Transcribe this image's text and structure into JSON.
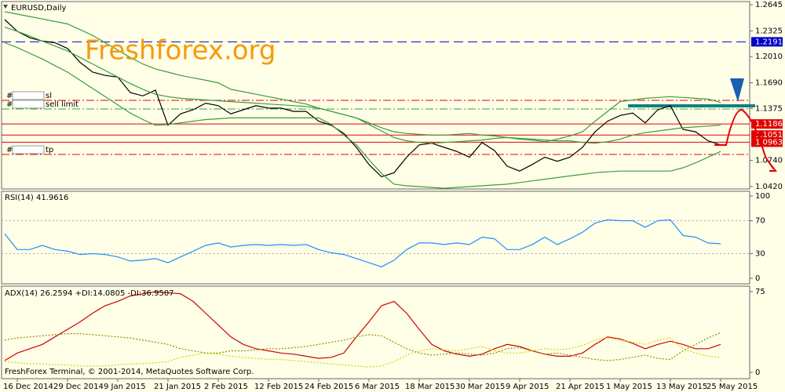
{
  "chart_data": [
    {
      "type": "line",
      "title": "EURUSD,Daily",
      "watermark": "Freshforex.org",
      "categories": [
        null,
        "16 Dec 2014",
        null,
        null,
        null,
        "29 Dec 2014",
        null,
        null,
        null,
        "9 Jan 2015",
        null,
        null,
        null,
        "21 Jan 2015",
        null,
        null,
        null,
        "2 Feb 2015",
        null,
        null,
        null,
        "12 Feb 2015",
        null,
        null,
        null,
        "24 Feb 2015",
        null,
        null,
        null,
        "6 Mar 2015",
        null,
        null,
        null,
        "18 Mar 2015",
        null,
        null,
        null,
        "30 Mar 2015",
        null,
        null,
        null,
        "9 Apr 2015",
        null,
        null,
        null,
        "21 Apr 2015",
        null,
        null,
        null,
        "1 May 2015",
        null,
        null,
        null,
        "13 May 2015",
        null,
        null,
        null,
        "25 May 2015"
      ],
      "ylim": [
        1.042,
        1.2645
      ],
      "yticks": [
        1.2645,
        1.2325,
        {
          "value": 1.201,
          "label": "1.2010"
        },
        {
          "value": 1.169,
          "label": "1.1690"
        },
        1.1375,
        {
          "value": 1.074,
          "label": "1.0740"
        },
        {
          "value": 1.042,
          "label": "1.0420"
        }
      ],
      "series": [
        {
          "color": "#000000",
          "values": [
            1.2463,
            1.232,
            1.224,
            1.22,
            1.218,
            1.211,
            1.194,
            1.182,
            1.178,
            1.176,
            1.157,
            1.153,
            1.16,
            1.117,
            1.131,
            1.136,
            1.144,
            1.141,
            1.131,
            1.136,
            1.141,
            1.138,
            1.138,
            1.134,
            1.134,
            1.122,
            1.117,
            1.107,
            1.09,
            1.069,
            1.054,
            1.059,
            1.078,
            1.093,
            1.095,
            1.09,
            1.085,
            1.078,
            1.096,
            1.086,
            1.067,
            1.061,
            1.069,
            1.078,
            1.073,
            1.078,
            1.09,
            1.109,
            1.122,
            1.129,
            1.132,
            1.12,
            1.136,
            1.141,
            1.112,
            1.109,
            1.098,
            1.093
          ]
        },
        {
          "color": "#3c9c3c",
          "values": [
            1.256,
            1.253,
            1.25,
            1.247,
            1.244,
            1.241,
            1.234,
            1.227,
            1.218,
            1.209,
            1.2,
            1.192,
            1.186,
            1.182,
            1.178,
            1.175,
            1.172,
            1.169,
            1.161,
            1.158,
            1.155,
            1.152,
            1.149,
            1.146,
            1.143,
            1.138,
            1.134,
            1.13,
            1.126,
            1.12,
            1.114,
            1.109,
            1.107,
            1.106,
            1.105,
            1.105,
            1.106,
            1.107,
            1.105,
            1.104,
            1.102,
            1.1,
            1.099,
            1.097,
            1.1,
            1.104,
            1.109,
            1.122,
            1.134,
            1.146,
            1.148,
            1.15,
            1.151,
            1.152,
            1.151,
            1.15,
            1.149,
            1.145
          ]
        },
        {
          "color": "#3c9c3c",
          "values": [
            1.237,
            1.232,
            1.226,
            1.22,
            1.214,
            1.208,
            1.2,
            1.192,
            1.184,
            1.176,
            1.168,
            1.161,
            1.155,
            1.152,
            1.15,
            1.149,
            1.148,
            1.147,
            1.146,
            1.145,
            1.144,
            1.143,
            1.142,
            1.141,
            1.14,
            1.138,
            1.134,
            1.13,
            1.126,
            1.118,
            1.11,
            1.102,
            1.098,
            1.096,
            1.095,
            1.096,
            1.097,
            1.098,
            1.099,
            1.101,
            1.102,
            1.101,
            1.1,
            1.099,
            1.098,
            1.098,
            1.096,
            1.095,
            1.097,
            1.1,
            1.105,
            1.108,
            1.11,
            1.112,
            1.114,
            1.115,
            1.116,
            1.117
          ]
        },
        {
          "color": "#3c9c3c",
          "values": [
            1.218,
            1.212,
            1.205,
            1.198,
            1.19,
            1.182,
            1.172,
            1.162,
            1.152,
            1.142,
            1.132,
            1.124,
            1.117,
            1.118,
            1.12,
            1.122,
            1.124,
            1.125,
            1.126,
            1.126,
            1.126,
            1.126,
            1.126,
            1.126,
            1.126,
            1.126,
            1.118,
            1.105,
            1.093,
            1.075,
            1.058,
            1.045,
            1.043,
            1.042,
            1.041,
            1.04,
            1.041,
            1.042,
            1.043,
            1.044,
            1.045,
            1.047,
            1.049,
            1.051,
            1.053,
            1.055,
            1.057,
            1.059,
            1.06,
            1.061,
            1.061,
            1.061,
            1.061,
            1.061,
            1.065,
            1.071,
            1.078,
            1.085
          ]
        }
      ],
      "levels": [
        {
          "value": 1.2191,
          "color": "#0000c8",
          "style": "dashed"
        },
        {
          "value": 1.1186,
          "color": "#e00000",
          "style": "solid"
        },
        {
          "value": 1.1051,
          "color": "#e00000",
          "style": "solid"
        },
        {
          "value": 1.0963,
          "color": "#e00000",
          "style": "solid"
        }
      ],
      "orders": [
        {
          "prefix": "#",
          "name": "sl",
          "value": 1.1475,
          "color": "#e00000"
        },
        {
          "prefix": "#",
          "name": "sell limit",
          "value": 1.137,
          "color": "#3c9c3c"
        },
        {
          "prefix": "#",
          "name": "tp",
          "value": 1.0813,
          "color": "#e00000"
        }
      ],
      "trendline": {
        "value": 1.1408,
        "color": "#0f7f85"
      }
    },
    {
      "type": "line",
      "title": "RSI(14) 41.9616",
      "ylim": [
        0,
        100
      ],
      "yticks": [
        100,
        70,
        30,
        0
      ],
      "levels": [
        70,
        30
      ],
      "series": [
        {
          "color": "#1e90ff",
          "values": [
            54,
            35,
            35,
            40,
            35,
            33,
            29,
            30,
            29,
            26,
            21,
            22,
            24,
            19,
            26,
            33,
            40,
            43,
            38,
            40,
            41,
            40,
            41,
            40,
            41,
            35,
            31,
            29,
            24,
            19,
            14,
            22,
            35,
            43,
            43,
            41,
            43,
            41,
            50,
            48,
            35,
            35,
            41,
            50,
            41,
            48,
            56,
            67,
            71,
            70,
            70,
            62,
            70,
            71,
            52,
            50,
            43,
            42
          ]
        }
      ]
    },
    {
      "type": "line",
      "title": "ADX(14) 26.2594 +DI:14.0805 -DI:36.9507",
      "footer": "FreshForex Terminal, © 2001-2014, MetaQuotes Software Corp.",
      "ylim": [
        0,
        75
      ],
      "yticks": [
        75,
        0
      ],
      "series": [
        {
          "color": "#d00000",
          "values": [
            11,
            18,
            22,
            26,
            33,
            40,
            47,
            55,
            62,
            66,
            71,
            73,
            75,
            74,
            73,
            66,
            55,
            44,
            33,
            26,
            22,
            20,
            18,
            17,
            15,
            13,
            14,
            18,
            33,
            47,
            62,
            66,
            55,
            40,
            26,
            20,
            17,
            15,
            17,
            22,
            26,
            24,
            20,
            17,
            15,
            15,
            18,
            26,
            33,
            31,
            27,
            22,
            26,
            29,
            26,
            22,
            22,
            26
          ]
        },
        {
          "color": "#d4d400",
          "dashed": true,
          "values": [
            10,
            9,
            8,
            8,
            7,
            7,
            6,
            6,
            6,
            7,
            8,
            8,
            9,
            10,
            14,
            16,
            18,
            17,
            15,
            14,
            13,
            12,
            12,
            11,
            10,
            9,
            8,
            7,
            6,
            5,
            6,
            10,
            16,
            20,
            22,
            21,
            20,
            22,
            24,
            20,
            18,
            18,
            20,
            22,
            21,
            22,
            25,
            30,
            32,
            30,
            28,
            26,
            30,
            32,
            22,
            18,
            15,
            14
          ]
        },
        {
          "color": "#8c8c00",
          "dashed": true,
          "values": [
            30,
            32,
            33,
            34,
            35,
            36,
            36,
            35,
            34,
            33,
            32,
            30,
            28,
            26,
            22,
            20,
            18,
            18,
            20,
            20,
            21,
            22,
            22,
            23,
            24,
            26,
            28,
            30,
            33,
            35,
            34,
            28,
            22,
            18,
            16,
            17,
            18,
            17,
            16,
            18,
            22,
            23,
            20,
            17,
            18,
            16,
            14,
            12,
            11,
            12,
            14,
            16,
            13,
            12,
            20,
            26,
            32,
            37
          ]
        }
      ]
    }
  ]
}
